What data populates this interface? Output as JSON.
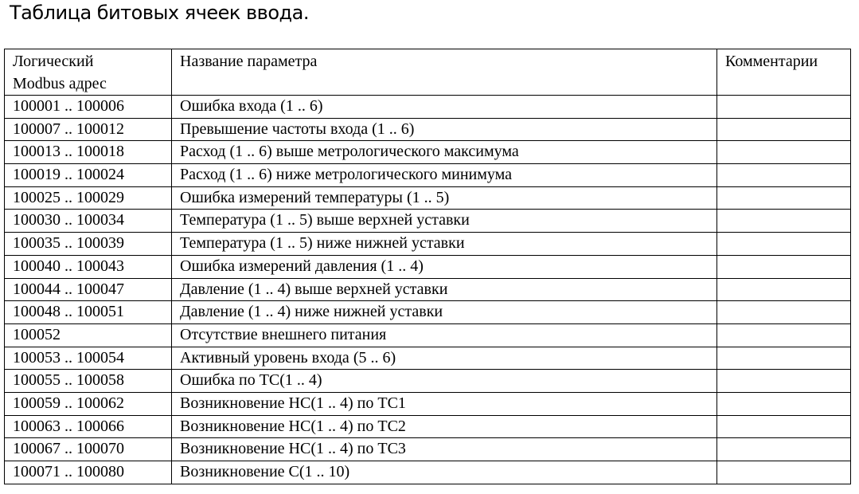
{
  "title": "Таблица битовых ячеек ввода.",
  "table": {
    "headers": [
      "Логический Modbus адрес",
      "Название параметра",
      "Комментарии"
    ],
    "rows": [
      {
        "address": "100001 .. 100006",
        "name": "Ошибка входа (1 .. 6)",
        "comment": ""
      },
      {
        "address": "100007 .. 100012",
        "name": "Превышение частоты входа (1 .. 6)",
        "comment": ""
      },
      {
        "address": "100013 .. 100018",
        "name": "Расход (1 .. 6) выше метрологического максимума",
        "comment": ""
      },
      {
        "address": "100019 .. 100024",
        "name": "Расход (1 .. 6) ниже метрологического минимума",
        "comment": ""
      },
      {
        "address": "100025 .. 100029",
        "name": "Ошибка измерений температуры (1 .. 5)",
        "comment": ""
      },
      {
        "address": "100030 .. 100034",
        "name": "Температура (1 .. 5) выше верхней уставки",
        "comment": ""
      },
      {
        "address": "100035 .. 100039",
        "name": "Температура (1 .. 5) ниже нижней уставки",
        "comment": ""
      },
      {
        "address": "100040 .. 100043",
        "name": "Ошибка измерений давления (1 .. 4)",
        "comment": ""
      },
      {
        "address": "100044 .. 100047",
        "name": "Давление (1 .. 4) выше верхней уставки",
        "comment": ""
      },
      {
        "address": "100048 .. 100051",
        "name": "Давление (1 .. 4) ниже нижней уставки",
        "comment": ""
      },
      {
        "address": "100052",
        "name": "Отсутствие внешнего питания",
        "comment": ""
      },
      {
        "address": "100053 .. 100054",
        "name": "Активный уровень входа (5 .. 6)",
        "comment": ""
      },
      {
        "address": "100055 .. 100058",
        "name": "Ошибка по ТС(1 .. 4)",
        "comment": ""
      },
      {
        "address": "100059 .. 100062",
        "name": "Возникновение НС(1 .. 4) по ТС1",
        "comment": ""
      },
      {
        "address": "100063 .. 100066",
        "name": "Возникновение НС(1 .. 4) по ТС2",
        "comment": ""
      },
      {
        "address": "100067 .. 100070",
        "name": "Возникновение НС(1 .. 4) по ТС3",
        "comment": ""
      },
      {
        "address": "100071 .. 100080",
        "name": "Возникновение С(1 .. 10)",
        "comment": ""
      }
    ]
  }
}
